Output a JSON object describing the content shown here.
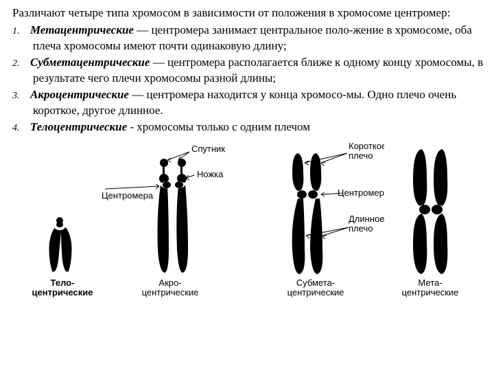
{
  "intro": "Различают четыре типа хромосом в зависимости от положения в хромосоме центромер:",
  "items": [
    {
      "term": "Метацентрические",
      "rest": " — центромера занимает центральное поло-жение в хромосоме, оба плеча хромосомы имеют почти одинаковую длину;"
    },
    {
      "term": "Субметацентрические",
      "rest": " — центромера располагается ближе к одному концу хромосомы, в результате чего плечи хромосомы разной длины;"
    },
    {
      "term": "Акроцентрические",
      "rest": " — центромера находится у конца хромосо-мы. Одно плечо очень короткое, другое длинное."
    },
    {
      "term": "Телоцентрические",
      "rest": " -  хромосомы только с одним плечом"
    }
  ],
  "labels": {
    "sputnik": "Спутник",
    "nozhka": "Ножка",
    "centromera": "Центромера",
    "short_arm": "Короткое\nплечо",
    "long_arm": "Длинное\nплечо"
  },
  "captions": {
    "telo": "Тело-\nцентрические",
    "akro": "Акро-\nцентрические",
    "submeta": "Субмета-\nцентрические",
    "meta": "Мета-\nцентрические"
  },
  "style": {
    "fill": "#000000",
    "label_font": "13px Arial"
  }
}
